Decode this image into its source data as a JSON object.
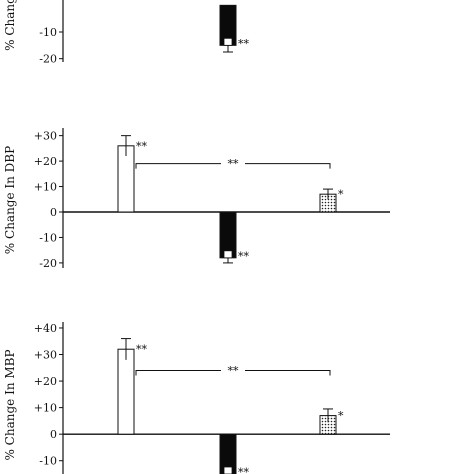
{
  "chart_data": [
    {
      "type": "bar",
      "ylabel": "% Change",
      "ylim": [
        -22,
        5
      ],
      "yticks": [
        {
          "v": -10,
          "label": "-10"
        },
        {
          "v": -20,
          "label": "-20"
        }
      ],
      "bars": [
        {
          "group": 2,
          "value": -15,
          "err": 2.5,
          "fill": "black",
          "sig": "**"
        }
      ],
      "brackets": []
    },
    {
      "type": "bar",
      "ylabel": "% Change In DBP",
      "ylim": [
        -22,
        33
      ],
      "yticks": [
        {
          "v": 30,
          "label": "+30"
        },
        {
          "v": 20,
          "label": "+20"
        },
        {
          "v": 10,
          "label": "+10"
        },
        {
          "v": 0,
          "label": "0"
        },
        {
          "v": -10,
          "label": "-10"
        },
        {
          "v": -20,
          "label": "-20"
        }
      ],
      "bars": [
        {
          "group": 1,
          "value": 26,
          "err": 4,
          "fill": "white",
          "sig": "**"
        },
        {
          "group": 2,
          "value": -18,
          "err": 2,
          "fill": "black",
          "sig": "**"
        },
        {
          "group": 3,
          "value": 7,
          "err": 2,
          "fill": "dotted",
          "sig": "*"
        }
      ],
      "brackets": [
        {
          "from": 1,
          "to": 3,
          "y": 19,
          "label": "**"
        }
      ]
    },
    {
      "type": "bar",
      "ylabel": "% Change In MBP",
      "ylim": [
        -15,
        43
      ],
      "yticks": [
        {
          "v": 40,
          "label": "+40"
        },
        {
          "v": 30,
          "label": "+30"
        },
        {
          "v": 20,
          "label": "+20"
        },
        {
          "v": 10,
          "label": "+10"
        },
        {
          "v": 0,
          "label": "0"
        },
        {
          "v": -10,
          "label": "-10"
        }
      ],
      "bars": [
        {
          "group": 1,
          "value": 32,
          "err": 4,
          "fill": "white",
          "sig": "**"
        },
        {
          "group": 2,
          "value": -15,
          "err": 2,
          "fill": "black",
          "sig": "**"
        },
        {
          "group": 3,
          "value": 7,
          "err": 2.5,
          "fill": "dotted",
          "sig": "*"
        }
      ],
      "brackets": [
        {
          "from": 1,
          "to": 3,
          "y": 24,
          "label": "**"
        }
      ]
    }
  ]
}
